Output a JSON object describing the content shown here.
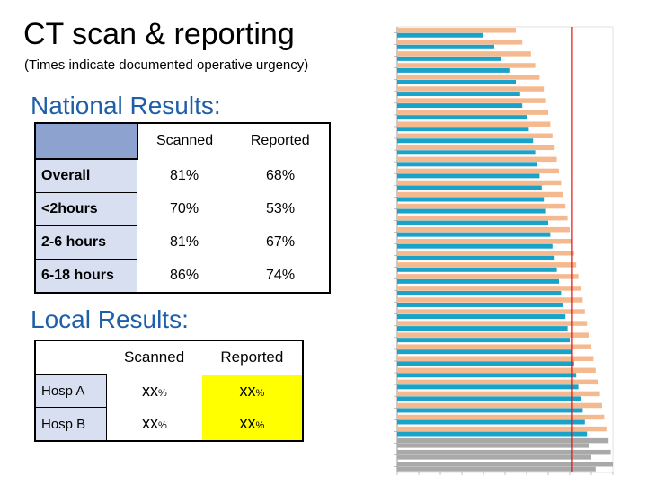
{
  "title": "CT scan & reporting",
  "subtitle": "(Times indicate documented operative urgency)",
  "national": {
    "heading": "National Results:",
    "columns": [
      "Scanned",
      "Reported"
    ],
    "rows": [
      {
        "label": "Overall",
        "scanned": "81%",
        "reported": "68%"
      },
      {
        "label": "<2hours",
        "scanned": "70%",
        "reported": "53%"
      },
      {
        "label": "2-6 hours",
        "scanned": "81%",
        "reported": "67%"
      },
      {
        "label": "6-18 hours",
        "scanned": "86%",
        "reported": "74%"
      }
    ]
  },
  "local": {
    "heading": "Local Results:",
    "columns": [
      "Scanned",
      "Reported"
    ],
    "rows": [
      {
        "label": "Hosp A",
        "scanned": "xx",
        "scanned_unit": "%",
        "reported": "xx",
        "reported_unit": "%"
      },
      {
        "label": "Hosp B",
        "scanned": "xx",
        "scanned_unit": "%",
        "reported": "xx",
        "reported_unit": "%"
      }
    ]
  },
  "colors": {
    "heading": "#1f5fa8",
    "scanned_bar": "#f5b98f",
    "reported_bar": "#1aa3c8",
    "grey_bar": "#a9a9a9",
    "reference_line": "#e01010",
    "local_highlight": "#ffff00"
  },
  "chart_data": {
    "type": "bar",
    "orientation": "horizontal",
    "title": "",
    "xlabel": "",
    "ylabel": "",
    "series": [
      {
        "values": [
          0.55,
          0.58,
          0.62,
          0.64,
          0.66,
          0.68,
          0.69,
          0.7,
          0.71,
          0.72,
          0.73,
          0.74,
          0.75,
          0.76,
          0.77,
          0.78,
          0.79,
          0.8,
          0.81,
          0.82,
          0.83,
          0.84,
          0.85,
          0.86,
          0.87,
          0.88,
          0.89,
          0.9,
          0.91,
          0.92,
          0.93,
          0.94,
          0.95,
          0.96,
          0.97,
          0.98,
          0.99,
          1.0
        ]
      },
      {
        "values": [
          0.4,
          0.45,
          0.48,
          0.52,
          0.55,
          0.57,
          0.58,
          0.6,
          0.61,
          0.63,
          0.64,
          0.65,
          0.66,
          0.67,
          0.68,
          0.69,
          0.7,
          0.71,
          0.72,
          0.73,
          0.74,
          0.75,
          0.76,
          0.77,
          0.78,
          0.79,
          0.8,
          0.81,
          0.82,
          0.83,
          0.84,
          0.85,
          0.86,
          0.87,
          0.88,
          0.89,
          0.9,
          0.92
        ]
      }
    ],
    "reference_line": 0.81,
    "grid": false,
    "legend": "none"
  }
}
